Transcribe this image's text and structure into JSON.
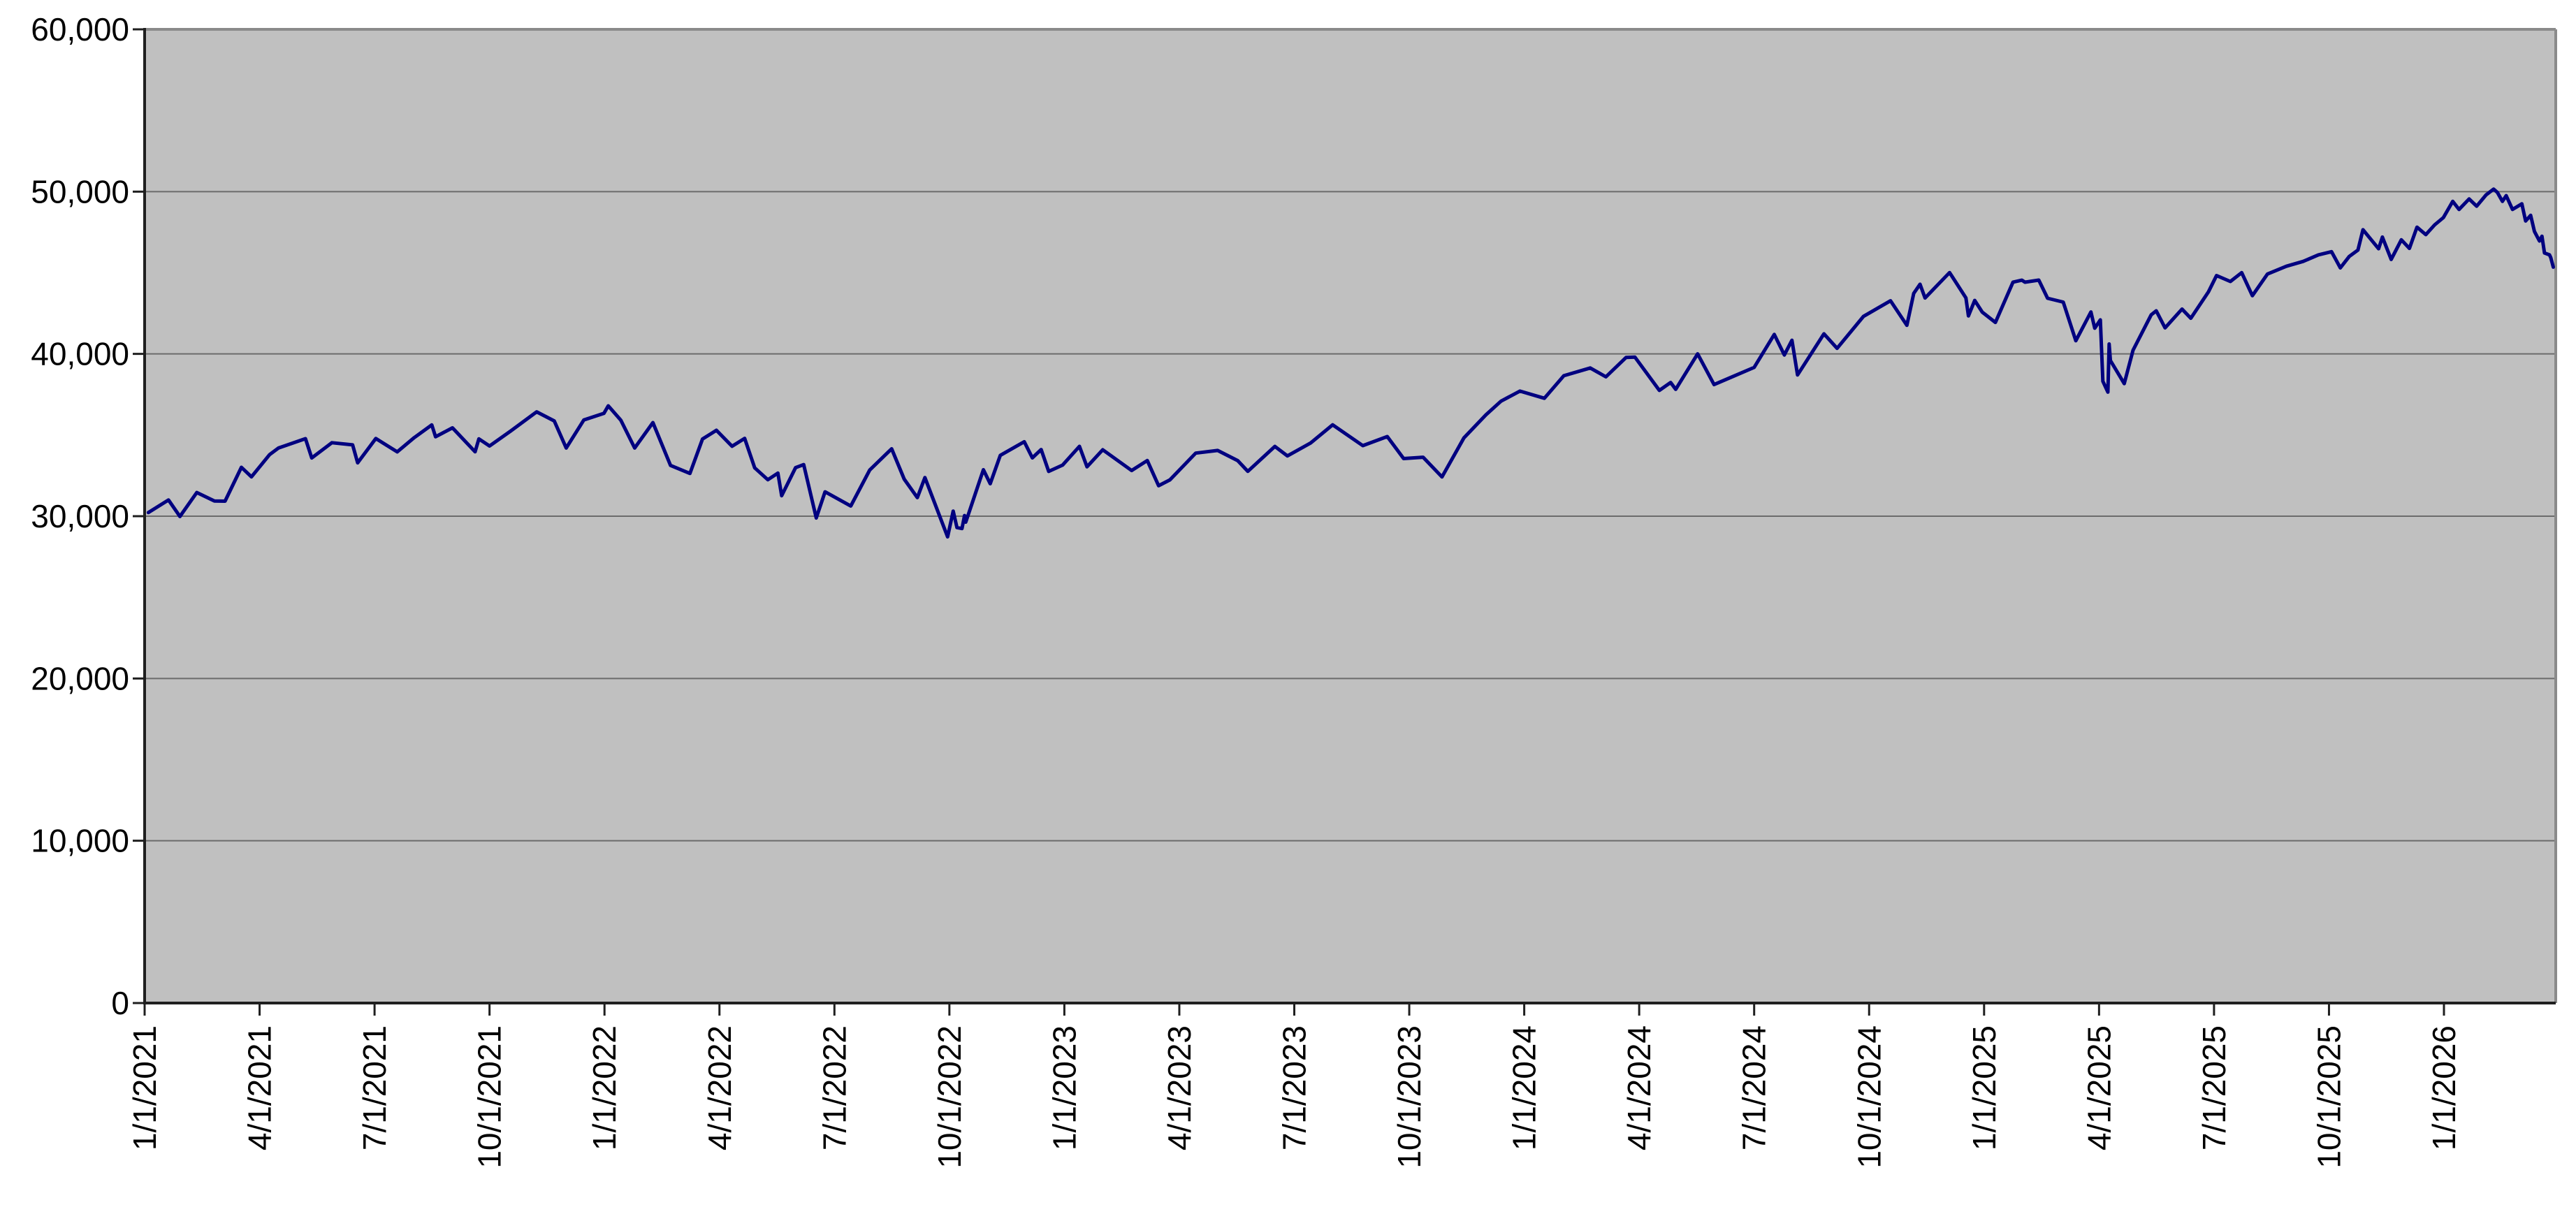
{
  "chart_data": {
    "type": "line",
    "title": "",
    "legend": "none",
    "grid": "horizontal",
    "colors": {
      "series_line": "#000080",
      "plot_background": "#c0c0c0",
      "gridline": "#6b6b6b",
      "axis_line": "#1f1f1f",
      "plot_border": "#8a8a8a",
      "label_text": "#000000",
      "page_background": "#ffffff"
    },
    "y_axis": {
      "range": [
        0,
        60000
      ],
      "tick_values": [
        0,
        10000,
        20000,
        30000,
        40000,
        50000,
        60000
      ],
      "tick_labels": [
        "0",
        "10,000",
        "20,000",
        "30,000",
        "40,000",
        "50,000",
        "60,000"
      ]
    },
    "x_axis": {
      "tick_labels": [
        "1/1/2021",
        "4/1/2021",
        "7/1/2021",
        "10/1/2021",
        "1/1/2022",
        "4/1/2022",
        "7/1/2022",
        "10/1/2022",
        "1/1/2023",
        "4/1/2023",
        "7/1/2023",
        "10/1/2023",
        "1/1/2024",
        "4/1/2024",
        "7/1/2024",
        "10/1/2024",
        "1/1/2025",
        "4/1/2025",
        "7/1/2025",
        "10/1/2025",
        "1/1/2026"
      ],
      "tick_positions_months": [
        0,
        3,
        6,
        9,
        12,
        15,
        18,
        21,
        24,
        27,
        30,
        33,
        36,
        39,
        42,
        45,
        48,
        51,
        54,
        57,
        60
      ],
      "range_months": [
        0,
        62.9
      ],
      "label_rotation_degrees": -90
    },
    "series": [
      {
        "color": "#000080",
        "points": [
          [
            "2021-01-04",
            30224
          ],
          [
            "2021-01-20",
            31000
          ],
          [
            "2021-01-29",
            29983
          ],
          [
            "2021-02-12",
            31458
          ],
          [
            "2021-02-26",
            30932
          ],
          [
            "2021-03-04",
            30924
          ],
          [
            "2021-03-17",
            33015
          ],
          [
            "2021-03-25",
            32423
          ],
          [
            "2021-04-09",
            33801
          ],
          [
            "2021-04-16",
            34201
          ],
          [
            "2021-05-07",
            34778
          ],
          [
            "2021-05-12",
            33588
          ],
          [
            "2021-05-28",
            34529
          ],
          [
            "2021-06-14",
            34394
          ],
          [
            "2021-06-18",
            33290
          ],
          [
            "2021-07-02",
            34786
          ],
          [
            "2021-07-19",
            33962
          ],
          [
            "2021-08-02",
            34838
          ],
          [
            "2021-08-16",
            35625
          ],
          [
            "2021-08-19",
            34894
          ],
          [
            "2021-09-02",
            35444
          ],
          [
            "2021-09-20",
            33970
          ],
          [
            "2021-09-23",
            34765
          ],
          [
            "2021-10-01",
            34326
          ],
          [
            "2021-10-18",
            35258
          ],
          [
            "2021-11-08",
            36432
          ],
          [
            "2021-11-22",
            35870
          ],
          [
            "2021-12-01",
            34200
          ],
          [
            "2021-12-15",
            35927
          ],
          [
            "2021-12-31",
            36338
          ],
          [
            "2022-01-04",
            36800
          ],
          [
            "2022-01-14",
            35912
          ],
          [
            "2022-01-25",
            34200
          ],
          [
            "2022-02-09",
            35768
          ],
          [
            "2022-02-23",
            33131
          ],
          [
            "2022-03-08",
            32632
          ],
          [
            "2022-03-18",
            34755
          ],
          [
            "2022-03-29",
            35294
          ],
          [
            "2022-04-11",
            34308
          ],
          [
            "2022-04-21",
            34793
          ],
          [
            "2022-04-29",
            32977
          ],
          [
            "2022-05-09",
            32246
          ],
          [
            "2022-05-17",
            32655
          ],
          [
            "2022-05-20",
            31261
          ],
          [
            "2022-05-31",
            32990
          ],
          [
            "2022-06-07",
            33180
          ],
          [
            "2022-06-17",
            29889
          ],
          [
            "2022-06-24",
            31501
          ],
          [
            "2022-07-14",
            30630
          ],
          [
            "2022-07-29",
            32845
          ],
          [
            "2022-08-16",
            34152
          ],
          [
            "2022-08-26",
            32283
          ],
          [
            "2022-09-06",
            31145
          ],
          [
            "2022-09-12",
            32381
          ],
          [
            "2022-09-30",
            28726
          ],
          [
            "2022-10-04",
            30316
          ],
          [
            "2022-10-07",
            29297
          ],
          [
            "2022-10-11",
            29239
          ],
          [
            "2022-10-13",
            30039
          ],
          [
            "2022-10-14",
            29635
          ],
          [
            "2022-10-28",
            32862
          ],
          [
            "2022-11-03",
            32001
          ],
          [
            "2022-11-11",
            33748
          ],
          [
            "2022-11-30",
            34590
          ],
          [
            "2022-12-06",
            33596
          ],
          [
            "2022-12-13",
            34108
          ],
          [
            "2022-12-19",
            32757
          ],
          [
            "2022-12-30",
            33147
          ],
          [
            "2023-01-13",
            34303
          ],
          [
            "2023-01-19",
            33045
          ],
          [
            "2023-02-01",
            34093
          ],
          [
            "2023-02-24",
            32817
          ],
          [
            "2023-03-06",
            33431
          ],
          [
            "2023-03-15",
            31875
          ],
          [
            "2023-03-24",
            32238
          ],
          [
            "2023-04-14",
            33886
          ],
          [
            "2023-05-01",
            34052
          ],
          [
            "2023-05-17",
            33421
          ],
          [
            "2023-05-25",
            32765
          ],
          [
            "2023-06-16",
            34299
          ],
          [
            "2023-06-26",
            33714
          ],
          [
            "2023-07-14",
            34509
          ],
          [
            "2023-08-01",
            35630
          ],
          [
            "2023-08-25",
            34347
          ],
          [
            "2023-09-14",
            34907
          ],
          [
            "2023-09-27",
            33550
          ],
          [
            "2023-10-12",
            33631
          ],
          [
            "2023-10-27",
            32418
          ],
          [
            "2023-11-14",
            34827
          ],
          [
            "2023-12-01",
            36245
          ],
          [
            "2023-12-13",
            37090
          ],
          [
            "2023-12-28",
            37710
          ],
          [
            "2024-01-17",
            37267
          ],
          [
            "2024-02-02",
            38654
          ],
          [
            "2024-02-23",
            39132
          ],
          [
            "2024-03-05",
            38585
          ],
          [
            "2024-03-21",
            39781
          ],
          [
            "2024-03-28",
            39807
          ],
          [
            "2024-04-17",
            37753
          ],
          [
            "2024-04-26",
            38239
          ],
          [
            "2024-04-30",
            37815
          ],
          [
            "2024-05-17",
            40004
          ],
          [
            "2024-05-30",
            38111
          ],
          [
            "2024-06-14",
            38589
          ],
          [
            "2024-07-01",
            39170
          ],
          [
            "2024-07-17",
            41198
          ],
          [
            "2024-07-25",
            39935
          ],
          [
            "2024-07-31",
            40843
          ],
          [
            "2024-08-05",
            38703
          ],
          [
            "2024-08-26",
            41240
          ],
          [
            "2024-09-06",
            40345
          ],
          [
            "2024-09-27",
            42313
          ],
          [
            "2024-10-18",
            43276
          ],
          [
            "2024-10-31",
            41763
          ],
          [
            "2024-11-06",
            43730
          ],
          [
            "2024-11-11",
            44294
          ],
          [
            "2024-11-15",
            43445
          ],
          [
            "2024-12-04",
            45014
          ],
          [
            "2024-12-17",
            43449
          ],
          [
            "2024-12-19",
            42342
          ],
          [
            "2024-12-24",
            43297
          ],
          [
            "2024-12-30",
            42573
          ],
          [
            "2025-01-10",
            41938
          ],
          [
            "2025-01-24",
            44424
          ],
          [
            "2025-01-31",
            44545
          ],
          [
            "2025-02-03",
            44421
          ],
          [
            "2025-02-14",
            44546
          ],
          [
            "2025-02-21",
            43428
          ],
          [
            "2025-03-03",
            43191
          ],
          [
            "2025-03-13",
            40813
          ],
          [
            "2025-03-25",
            42587
          ],
          [
            "2025-03-28",
            41584
          ],
          [
            "2025-04-02",
            42100
          ],
          [
            "2025-04-04",
            38315
          ],
          [
            "2025-04-08",
            37646
          ],
          [
            "2025-04-09",
            40608
          ],
          [
            "2025-04-10",
            39594
          ],
          [
            "2025-04-21",
            38170
          ],
          [
            "2025-04-28",
            40228
          ],
          [
            "2025-05-12",
            42410
          ],
          [
            "2025-05-16",
            42655
          ],
          [
            "2025-05-23",
            41603
          ],
          [
            "2025-06-06",
            42763
          ],
          [
            "2025-06-13",
            42198
          ],
          [
            "2025-06-27",
            43819
          ],
          [
            "2025-07-03",
            44828
          ],
          [
            "2025-07-14",
            44460
          ],
          [
            "2025-07-23",
            45010
          ],
          [
            "2025-08-01",
            43589
          ],
          [
            "2025-08-13",
            44922
          ],
          [
            "2025-08-28",
            45400
          ],
          [
            "2025-09-11",
            45700
          ],
          [
            "2025-09-23",
            46100
          ],
          [
            "2025-10-03",
            46300
          ],
          [
            "2025-10-10",
            45300
          ],
          [
            "2025-10-17",
            46000
          ],
          [
            "2025-10-24",
            46400
          ],
          [
            "2025-10-28",
            47650
          ],
          [
            "2025-11-05",
            46950
          ],
          [
            "2025-11-10",
            46480
          ],
          [
            "2025-11-13",
            47200
          ],
          [
            "2025-11-20",
            45820
          ],
          [
            "2025-11-28",
            47030
          ],
          [
            "2025-12-04",
            46500
          ],
          [
            "2025-12-10",
            47810
          ],
          [
            "2025-12-17",
            47350
          ],
          [
            "2025-12-24",
            47950
          ],
          [
            "2025-12-31",
            48400
          ],
          [
            "2026-01-08",
            49400
          ],
          [
            "2026-01-13",
            48900
          ],
          [
            "2026-01-21",
            49550
          ],
          [
            "2026-01-27",
            49100
          ],
          [
            "2026-02-04",
            49800
          ],
          [
            "2026-02-10",
            50150
          ],
          [
            "2026-02-13",
            49950
          ],
          [
            "2026-02-17",
            49400
          ],
          [
            "2026-02-20",
            49750
          ],
          [
            "2026-02-25",
            48900
          ],
          [
            "2026-03-02",
            49250
          ],
          [
            "2026-03-05",
            48190
          ],
          [
            "2026-03-09",
            48540
          ],
          [
            "2026-03-12",
            47550
          ],
          [
            "2026-03-16",
            46960
          ],
          [
            "2026-03-18",
            47250
          ],
          [
            "2026-03-20",
            46220
          ],
          [
            "2026-03-24",
            46100
          ],
          [
            "2026-03-25",
            45930
          ],
          [
            "2026-03-27",
            45350
          ]
        ]
      }
    ]
  }
}
